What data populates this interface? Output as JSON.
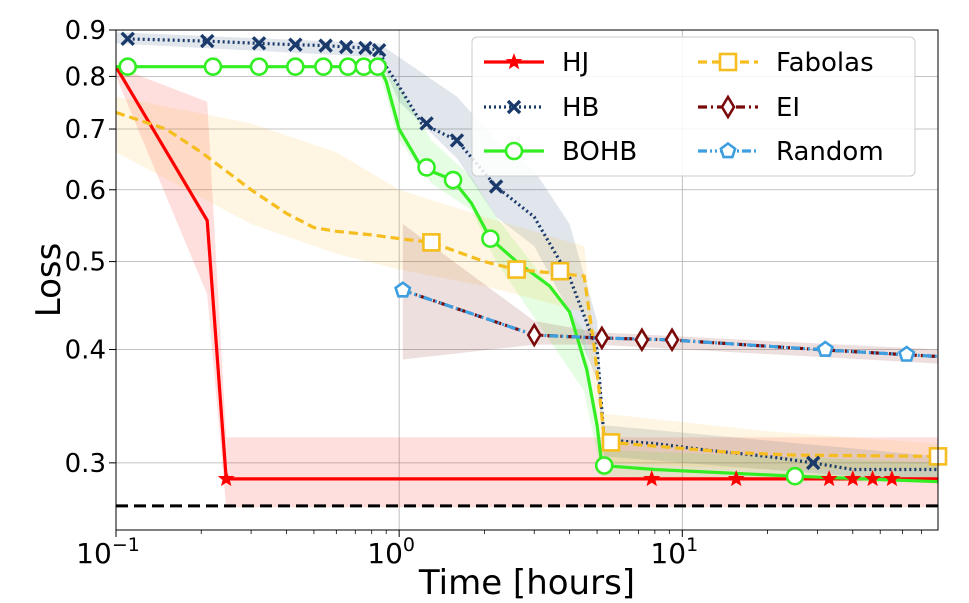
{
  "chart_data": {
    "type": "line",
    "xlabel": "Time [hours]",
    "ylabel": "Loss",
    "xscale": "log",
    "yscale": "log",
    "xlim": [
      0.1,
      80
    ],
    "ylim": [
      0.253,
      0.9
    ],
    "x_ticks": [
      {
        "value": 0.1,
        "base": "10",
        "exp": "−1"
      },
      {
        "value": 1,
        "base": "10",
        "exp": "0"
      },
      {
        "value": 10,
        "base": "10",
        "exp": "1"
      }
    ],
    "y_ticks": [
      {
        "value": 0.3,
        "label": "0.3"
      },
      {
        "value": 0.4,
        "label": "0.4"
      },
      {
        "value": 0.5,
        "label": "0.5"
      },
      {
        "value": 0.6,
        "label": "0.6"
      },
      {
        "value": 0.7,
        "label": "0.7"
      },
      {
        "value": 0.8,
        "label": "0.8"
      },
      {
        "value": 0.9,
        "label": "0.9"
      }
    ],
    "grid": true,
    "legend_position": "top-right",
    "reference_line": {
      "y": 0.269,
      "style": "dashed",
      "color": "#000000"
    },
    "series": [
      {
        "name": "HJ",
        "color": "#ff0000",
        "dash": "solid",
        "marker": "star",
        "x": [
          0.1,
          0.21,
          0.245,
          8,
          80
        ],
        "y": [
          0.82,
          0.555,
          0.288,
          0.288,
          0.288
        ],
        "markers": [
          [
            0.245,
            0.288
          ],
          [
            7.8,
            0.288
          ],
          [
            15.5,
            0.288
          ],
          [
            33,
            0.288
          ],
          [
            40,
            0.288
          ],
          [
            47,
            0.288
          ],
          [
            55,
            0.288
          ]
        ],
        "band": {
          "x": [
            0.1,
            0.21,
            0.245,
            80
          ],
          "upper": [
            0.82,
            0.75,
            0.32,
            0.32
          ],
          "lower": [
            0.8,
            0.46,
            0.268,
            0.268
          ]
        }
      },
      {
        "name": "HB",
        "color": "#1a3a6b",
        "dash": "dotted",
        "marker": "x",
        "x": [
          0.11,
          0.21,
          0.32,
          0.43,
          0.55,
          0.65,
          0.76,
          0.85,
          0.9,
          1.0,
          1.2,
          1.6,
          2.2,
          3.0,
          4.0,
          5.0,
          5.3,
          8,
          12,
          20,
          29,
          40,
          80
        ],
        "y": [
          0.88,
          0.875,
          0.87,
          0.867,
          0.865,
          0.862,
          0.86,
          0.855,
          0.82,
          0.78,
          0.71,
          0.68,
          0.605,
          0.56,
          0.48,
          0.4,
          0.318,
          0.315,
          0.31,
          0.305,
          0.3,
          0.295,
          0.295
        ],
        "markers": [
          [
            0.11,
            0.88
          ],
          [
            0.21,
            0.875
          ],
          [
            0.32,
            0.87
          ],
          [
            0.43,
            0.867
          ],
          [
            0.55,
            0.865
          ],
          [
            0.65,
            0.862
          ],
          [
            0.76,
            0.86
          ],
          [
            0.85,
            0.855
          ],
          [
            1.25,
            0.71
          ],
          [
            1.6,
            0.68
          ],
          [
            2.2,
            0.605
          ],
          [
            29,
            0.3
          ]
        ],
        "band": {
          "x": [
            0.1,
            0.85,
            1.0,
            1.6,
            2.2,
            3.0,
            4.0,
            5.0,
            5.3,
            80
          ],
          "upper": [
            0.895,
            0.87,
            0.84,
            0.76,
            0.68,
            0.63,
            0.55,
            0.43,
            0.33,
            0.305
          ],
          "lower": [
            0.87,
            0.84,
            0.75,
            0.65,
            0.56,
            0.52,
            0.44,
            0.37,
            0.305,
            0.285
          ]
        }
      },
      {
        "name": "BOHB",
        "color": "#33ee22",
        "dash": "solid",
        "marker": "circle",
        "x": [
          0.1,
          0.85,
          0.9,
          1.0,
          1.2,
          1.55,
          1.8,
          2.1,
          2.6,
          3.4,
          4.0,
          4.6,
          5.0,
          5.2,
          8,
          25,
          80
        ],
        "y": [
          0.82,
          0.82,
          0.79,
          0.7,
          0.635,
          0.615,
          0.58,
          0.53,
          0.5,
          0.47,
          0.44,
          0.38,
          0.33,
          0.298,
          0.295,
          0.29,
          0.286
        ],
        "markers": [
          [
            0.11,
            0.82
          ],
          [
            0.22,
            0.82
          ],
          [
            0.32,
            0.82
          ],
          [
            0.43,
            0.82
          ],
          [
            0.54,
            0.82
          ],
          [
            0.66,
            0.82
          ],
          [
            0.75,
            0.82
          ],
          [
            0.84,
            0.82
          ],
          [
            1.25,
            0.635
          ],
          [
            1.55,
            0.615
          ],
          [
            2.1,
            0.53
          ],
          [
            5.3,
            0.298
          ],
          [
            25,
            0.29
          ]
        ],
        "band": {
          "x": [
            0.85,
            1.0,
            1.3,
            1.8,
            2.2,
            4.5,
            5.2,
            80
          ],
          "upper": [
            0.83,
            0.78,
            0.68,
            0.62,
            0.56,
            0.42,
            0.31,
            0.3
          ],
          "lower": [
            0.81,
            0.68,
            0.61,
            0.57,
            0.5,
            0.36,
            0.29,
            0.285
          ]
        }
      },
      {
        "name": "Fabolas",
        "color": "#f5bd1e",
        "dash": "dashed",
        "marker": "square",
        "x": [
          0.1,
          0.15,
          0.2,
          0.3,
          0.4,
          0.5,
          0.6,
          0.8,
          1.0,
          1.3,
          2.0,
          2.6,
          3.0,
          4.5,
          4.9,
          5.3,
          5.6,
          8,
          15,
          25,
          80
        ],
        "y": [
          0.73,
          0.7,
          0.66,
          0.6,
          0.565,
          0.545,
          0.54,
          0.535,
          0.53,
          0.525,
          0.5,
          0.49,
          0.488,
          0.482,
          0.4,
          0.32,
          0.316,
          0.313,
          0.308,
          0.306,
          0.305
        ],
        "markers": [
          [
            1.3,
            0.525
          ],
          [
            2.6,
            0.49
          ],
          [
            3.7,
            0.488
          ],
          [
            5.6,
            0.316
          ],
          [
            80,
            0.305
          ]
        ],
        "band": {
          "x": [
            0.1,
            0.3,
            0.6,
            1.0,
            2.0,
            4.5,
            5.2,
            20,
            80
          ],
          "upper": [
            0.76,
            0.71,
            0.66,
            0.6,
            0.56,
            0.52,
            0.34,
            0.325,
            0.315
          ],
          "lower": [
            0.66,
            0.55,
            0.51,
            0.49,
            0.47,
            0.44,
            0.3,
            0.295,
            0.295
          ]
        }
      },
      {
        "name": "EI",
        "color": "#7a0a0a",
        "dash": "dashdot",
        "marker": "diamond",
        "x": [
          1.03,
          3.0,
          5.0,
          9.0,
          30,
          60,
          80
        ],
        "y": [
          0.465,
          0.415,
          0.412,
          0.41,
          0.4,
          0.395,
          0.393
        ],
        "markers": [
          [
            3.0,
            0.415
          ],
          [
            5.2,
            0.412
          ],
          [
            7.2,
            0.41
          ],
          [
            9.2,
            0.41
          ]
        ],
        "band": {
          "x": [
            1.03,
            3.0,
            5.0,
            80
          ],
          "upper": [
            0.55,
            0.43,
            0.418,
            0.4
          ],
          "lower": [
            0.39,
            0.405,
            0.405,
            0.386
          ]
        }
      },
      {
        "name": "Random",
        "color": "#3d9ee0",
        "dash": "dashdotdot",
        "marker": "pentagon",
        "x": [
          1.03,
          3.0,
          5.0,
          9.0,
          30,
          60,
          80
        ],
        "y": [
          0.465,
          0.415,
          0.412,
          0.41,
          0.4,
          0.395,
          0.393
        ],
        "markers": [
          [
            1.03,
            0.465
          ],
          [
            32,
            0.4
          ],
          [
            62,
            0.395
          ]
        ],
        "band": null
      }
    ]
  }
}
